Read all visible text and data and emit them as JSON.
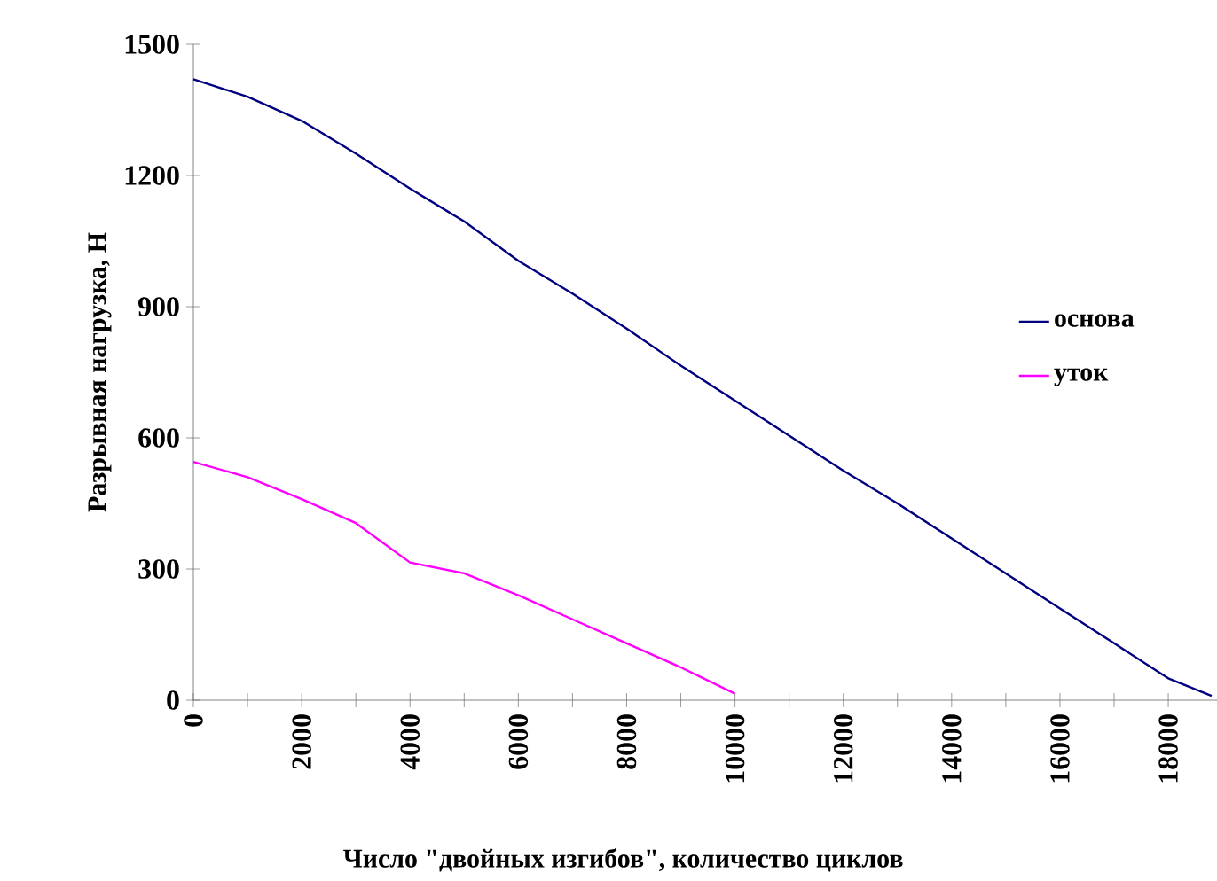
{
  "chart_data": {
    "type": "line",
    "xlabel": "Число \"двойных изгибов\", количество циклов",
    "ylabel": "Разрывная нагрузка, Н",
    "x": [
      0,
      1000,
      2000,
      3000,
      4000,
      5000,
      6000,
      7000,
      8000,
      9000,
      10000,
      11000,
      12000,
      13000,
      14000,
      15000,
      16000,
      17000,
      18000,
      18800
    ],
    "series": [
      {
        "name": "основа",
        "color": "#000080",
        "values": [
          1420,
          1380,
          1325,
          1250,
          1170,
          1095,
          1005,
          930,
          850,
          765,
          685,
          605,
          525,
          450,
          370,
          290,
          210,
          130,
          50,
          10
        ]
      },
      {
        "name": "уток",
        "color": "#ff00ff",
        "x": [
          0,
          1000,
          2000,
          3000,
          4000,
          5000,
          6000,
          7000,
          8000,
          9000,
          10000
        ],
        "values": [
          545,
          510,
          460,
          405,
          315,
          290,
          240,
          185,
          130,
          75,
          15
        ]
      }
    ],
    "xlim": [
      0,
      18900
    ],
    "ylim": [
      0,
      1500
    ],
    "xticks": [
      0,
      {
        "value": 1000,
        "label": null
      },
      2000,
      {
        "value": 3000,
        "label": null
      },
      4000,
      {
        "value": 5000,
        "label": null
      },
      6000,
      {
        "value": 7000,
        "label": null
      },
      8000,
      {
        "value": 9000,
        "label": null
      },
      10000,
      {
        "value": 11000,
        "label": null
      },
      12000,
      {
        "value": 13000,
        "label": null
      },
      14000,
      {
        "value": 15000,
        "label": null
      },
      16000,
      {
        "value": 17000,
        "label": null
      },
      18000
    ],
    "yticks": [
      0,
      300,
      600,
      900,
      1200,
      1500
    ],
    "grid": false,
    "legend": "right",
    "marker": "none",
    "line_style": "solid"
  }
}
